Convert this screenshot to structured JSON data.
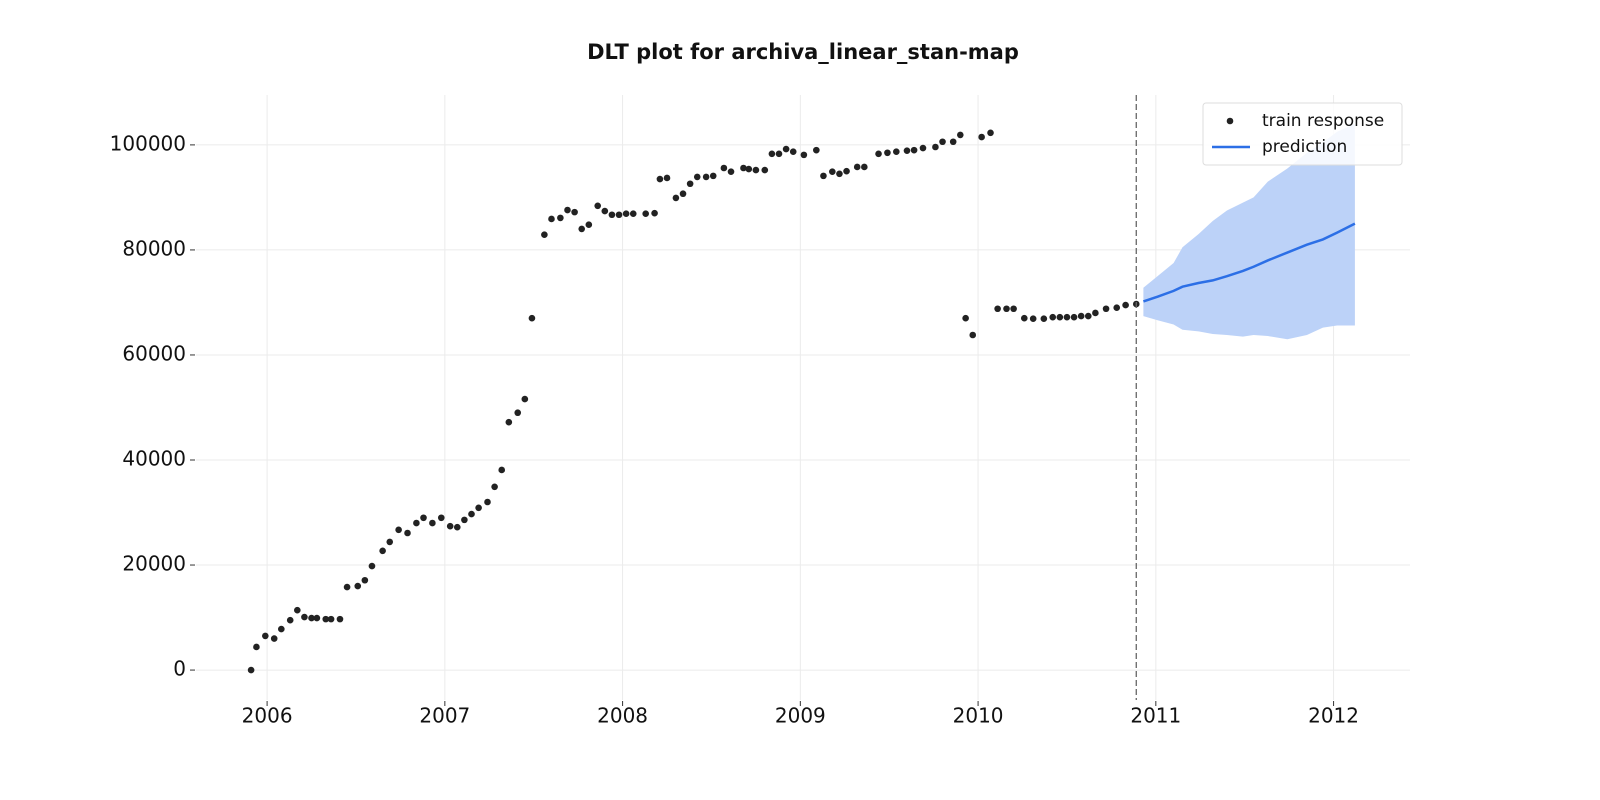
{
  "chart_data": {
    "type": "scatter",
    "title": "DLT plot for archiva_linear_stan-map",
    "xlim": [
      2005.6,
      2012.43
    ],
    "xticks": [
      2006,
      2007,
      2008,
      2009,
      2010,
      2011,
      2012
    ],
    "ylim": [
      -5700,
      109500
    ],
    "yticks": [
      0,
      20000,
      40000,
      60000,
      80000,
      100000
    ],
    "grid": true,
    "legend": "upper right",
    "vline": 2010.89,
    "series": [
      {
        "name": "train response",
        "type": "scatter",
        "color": "#222222",
        "x": [
          2005.91,
          2005.94,
          2005.99,
          2006.04,
          2006.08,
          2006.13,
          2006.17,
          2006.21,
          2006.25,
          2006.28,
          2006.33,
          2006.36,
          2006.41,
          2006.45,
          2006.51,
          2006.55,
          2006.59,
          2006.65,
          2006.69,
          2006.74,
          2006.79,
          2006.84,
          2006.88,
          2006.93,
          2006.98,
          2007.03,
          2007.07,
          2007.11,
          2007.15,
          2007.19,
          2007.24,
          2007.28,
          2007.32,
          2007.36,
          2007.41,
          2007.45,
          2007.49,
          2007.56,
          2007.6,
          2007.65,
          2007.69,
          2007.73,
          2007.77,
          2007.81,
          2007.86,
          2007.9,
          2007.94,
          2007.98,
          2008.02,
          2008.06,
          2008.13,
          2008.18,
          2008.21,
          2008.25,
          2008.3,
          2008.34,
          2008.38,
          2008.42,
          2008.47,
          2008.51,
          2008.57,
          2008.61,
          2008.68,
          2008.71,
          2008.75,
          2008.8,
          2008.84,
          2008.88,
          2008.92,
          2008.96,
          2009.02,
          2009.09,
          2009.13,
          2009.18,
          2009.22,
          2009.26,
          2009.32,
          2009.36,
          2009.44,
          2009.49,
          2009.54,
          2009.6,
          2009.64,
          2009.69,
          2009.76,
          2009.8,
          2009.86,
          2009.9,
          2009.93,
          2009.97,
          2010.02,
          2010.07,
          2010.11,
          2010.16,
          2010.2,
          2010.26,
          2010.31,
          2010.37,
          2010.42,
          2010.46,
          2010.5,
          2010.54,
          2010.58,
          2010.62,
          2010.66,
          2010.72,
          2010.78,
          2010.83,
          2010.89
        ],
        "values": [
          0,
          4400,
          6500,
          6000,
          7800,
          9500,
          11400,
          10100,
          9900,
          9900,
          9700,
          9700,
          9700,
          15800,
          16000,
          17100,
          19800,
          22700,
          24400,
          26700,
          26100,
          28000,
          29000,
          28000,
          29000,
          27400,
          27200,
          28600,
          29700,
          30900,
          32000,
          34900,
          38100,
          47200,
          49000,
          51600,
          67000,
          82900,
          85900,
          86100,
          87600,
          87200,
          84000,
          84800,
          88400,
          87400,
          86700,
          86700,
          86900,
          86900,
          86900,
          87000,
          93500,
          93700,
          89900,
          90700,
          92600,
          93900,
          93900,
          94100,
          95600,
          94900,
          95600,
          95400,
          95200,
          95200,
          98300,
          98300,
          99200,
          98700,
          98100,
          99000,
          94100,
          94900,
          94500,
          95000,
          95800,
          95800,
          98300,
          98500,
          98700,
          98900,
          99000,
          99400,
          99600,
          100600,
          100600,
          101900,
          67000,
          63800,
          101500,
          102300,
          68800,
          68800,
          68800,
          67000,
          66900,
          66900,
          67200,
          67200,
          67200,
          67200,
          67400,
          67400,
          68000,
          68800,
          69000,
          69500,
          69700
        ]
      },
      {
        "name": "prediction",
        "type": "line",
        "color": "#2c6fe6",
        "band_color": "#bcd2f8",
        "x": [
          2010.93,
          2011.01,
          2011.1,
          2011.15,
          2011.24,
          2011.32,
          2011.4,
          2011.49,
          2011.55,
          2011.63,
          2011.74,
          2011.85,
          2011.94,
          2012.02,
          2012.12
        ],
        "values": [
          70200,
          71100,
          72200,
          73000,
          73700,
          74200,
          75000,
          76000,
          76800,
          78000,
          79500,
          81000,
          82000,
          83300,
          85000
        ],
        "upper": [
          72800,
          75000,
          77500,
          80500,
          83000,
          85500,
          87500,
          89000,
          90000,
          93000,
          95500,
          98500,
          100500,
          102500,
          104000
        ],
        "lower": [
          67400,
          66600,
          65800,
          64800,
          64500,
          64000,
          63800,
          63500,
          63800,
          63600,
          63000,
          63800,
          65200,
          65600,
          65600
        ]
      }
    ]
  }
}
